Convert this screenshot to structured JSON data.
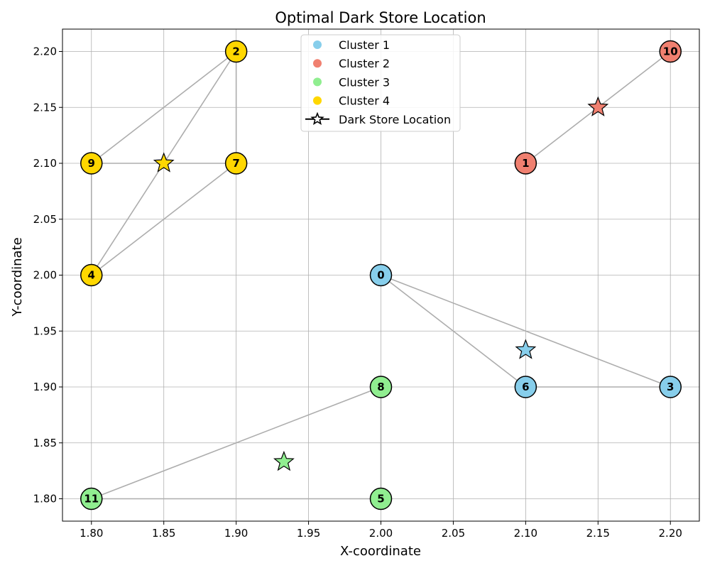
{
  "chart_data": {
    "type": "scatter",
    "title": "Optimal Dark Store Location",
    "xlabel": "X-coordinate",
    "ylabel": "Y-coordinate",
    "xlim": [
      1.78,
      2.22
    ],
    "ylim": [
      1.78,
      2.22
    ],
    "xticks": [
      "1.80",
      "1.85",
      "1.90",
      "1.95",
      "2.00",
      "2.05",
      "2.10",
      "2.15",
      "2.20"
    ],
    "yticks": [
      "1.80",
      "1.85",
      "1.90",
      "1.95",
      "2.00",
      "2.05",
      "2.10",
      "2.15",
      "2.20"
    ],
    "grid": true,
    "legend_position": "top-center",
    "clusters": [
      {
        "name": "Cluster 1",
        "color": "#87ceeb",
        "points": [
          {
            "id": "0",
            "x": 2.0,
            "y": 2.0
          },
          {
            "id": "3",
            "x": 2.2,
            "y": 1.9
          },
          {
            "id": "6",
            "x": 2.1,
            "y": 1.9
          }
        ],
        "edges": [
          [
            "0",
            "3"
          ],
          [
            "0",
            "6"
          ],
          [
            "6",
            "3"
          ]
        ],
        "store": {
          "x": 2.1,
          "y": 1.933
        }
      },
      {
        "name": "Cluster 2",
        "color": "#f08070",
        "points": [
          {
            "id": "1",
            "x": 2.1,
            "y": 2.1
          },
          {
            "id": "10",
            "x": 2.2,
            "y": 2.2
          }
        ],
        "edges": [
          [
            "1",
            "10"
          ]
        ],
        "store": {
          "x": 2.15,
          "y": 2.15
        }
      },
      {
        "name": "Cluster 3",
        "color": "#90ee90",
        "points": [
          {
            "id": "5",
            "x": 2.0,
            "y": 1.8
          },
          {
            "id": "8",
            "x": 2.0,
            "y": 1.9
          },
          {
            "id": "11",
            "x": 1.8,
            "y": 1.8
          }
        ],
        "edges": [
          [
            "11",
            "8"
          ],
          [
            "8",
            "5"
          ],
          [
            "11",
            "5"
          ]
        ],
        "store": {
          "x": 1.933,
          "y": 1.833
        }
      },
      {
        "name": "Cluster 4",
        "color": "#ffd700",
        "points": [
          {
            "id": "2",
            "x": 1.9,
            "y": 2.2
          },
          {
            "id": "4",
            "x": 1.8,
            "y": 2.0
          },
          {
            "id": "7",
            "x": 1.9,
            "y": 2.1
          },
          {
            "id": "9",
            "x": 1.8,
            "y": 2.1
          }
        ],
        "edges": [
          [
            "9",
            "2"
          ],
          [
            "4",
            "2"
          ],
          [
            "2",
            "7"
          ],
          [
            "9",
            "7"
          ],
          [
            "9",
            "4"
          ],
          [
            "4",
            "7"
          ]
        ],
        "store": {
          "x": 1.85,
          "y": 2.1
        }
      }
    ],
    "legend": [
      {
        "label": "Cluster 1",
        "color": "#87ceeb",
        "marker": "circle"
      },
      {
        "label": "Cluster 2",
        "color": "#f08070",
        "marker": "circle"
      },
      {
        "label": "Cluster 3",
        "color": "#90ee90",
        "marker": "circle"
      },
      {
        "label": "Cluster 4",
        "color": "#ffd700",
        "marker": "circle"
      },
      {
        "label": "Dark Store Location",
        "color": "#000000",
        "marker": "star-line"
      }
    ]
  }
}
